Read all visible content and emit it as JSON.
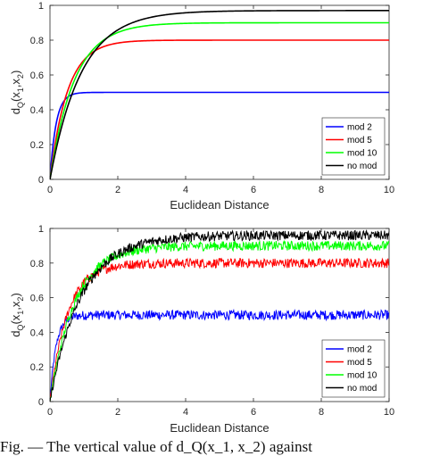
{
  "chart_data": [
    {
      "type": "line",
      "panel": "top",
      "title": "",
      "xlabel": "Euclidean Distance",
      "ylabel": "d_Q(x_1,x_2)",
      "xlim": [
        0,
        10
      ],
      "ylim": [
        0,
        1
      ],
      "xticks": [
        0,
        2,
        4,
        6,
        8,
        10
      ],
      "yticks": [
        0,
        0.2,
        0.4,
        0.6,
        0.8,
        1
      ],
      "noisy": false,
      "legend_position": "bottom-right",
      "series": [
        {
          "name": "mod 2",
          "color": "#0000ff",
          "plateau": 0.5,
          "rate": 2.8
        },
        {
          "name": "mod 5",
          "color": "#ff0000",
          "plateau": 0.8,
          "rate": 1.55
        },
        {
          "name": "mod 10",
          "color": "#00ff00",
          "plateau": 0.9,
          "rate": 1.25
        },
        {
          "name": "no mod",
          "color": "#000000",
          "plateau": 0.97,
          "rate": 1.05
        }
      ]
    },
    {
      "type": "line",
      "panel": "bottom",
      "title": "",
      "xlabel": "Euclidean Distance",
      "ylabel": "d_Q(x_1,x_2)",
      "xlim": [
        0,
        10
      ],
      "ylim": [
        0,
        1
      ],
      "xticks": [
        0,
        2,
        4,
        6,
        8,
        10
      ],
      "yticks": [
        0,
        0.2,
        0.4,
        0.6,
        0.8,
        1
      ],
      "noisy": true,
      "legend_position": "bottom-right",
      "series": [
        {
          "name": "mod 2",
          "color": "#0000ff",
          "plateau": 0.5,
          "rate": 2.8
        },
        {
          "name": "mod 5",
          "color": "#ff0000",
          "plateau": 0.8,
          "rate": 1.55
        },
        {
          "name": "mod 10",
          "color": "#00ff00",
          "plateau": 0.9,
          "rate": 1.25
        },
        {
          "name": "no mod",
          "color": "#000000",
          "plateau": 0.96,
          "rate": 1.05
        }
      ]
    }
  ],
  "caption": "Fig. — The vertical value of d_Q(x_1, x_2) against"
}
